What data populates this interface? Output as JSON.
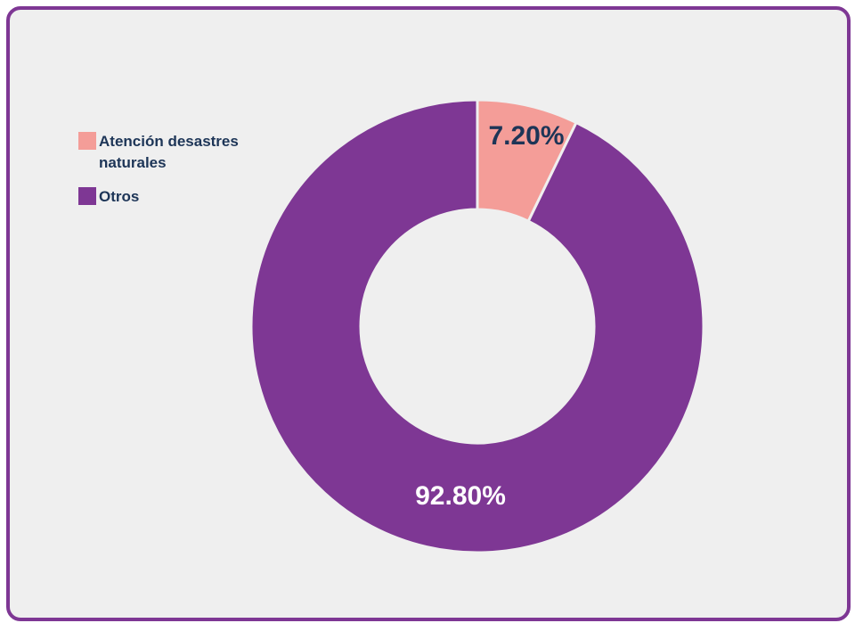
{
  "chart_data": {
    "type": "pie",
    "donut": true,
    "categories": [
      "Atención desastres naturales",
      "Otros"
    ],
    "values": [
      7.2,
      92.8
    ],
    "labels": [
      "7.20%",
      "92.80%"
    ],
    "colors": [
      "#f49d98",
      "#7e3794"
    ],
    "label_colors": [
      "#1d3557",
      "#ffffff"
    ],
    "legend_position": "top-left"
  }
}
